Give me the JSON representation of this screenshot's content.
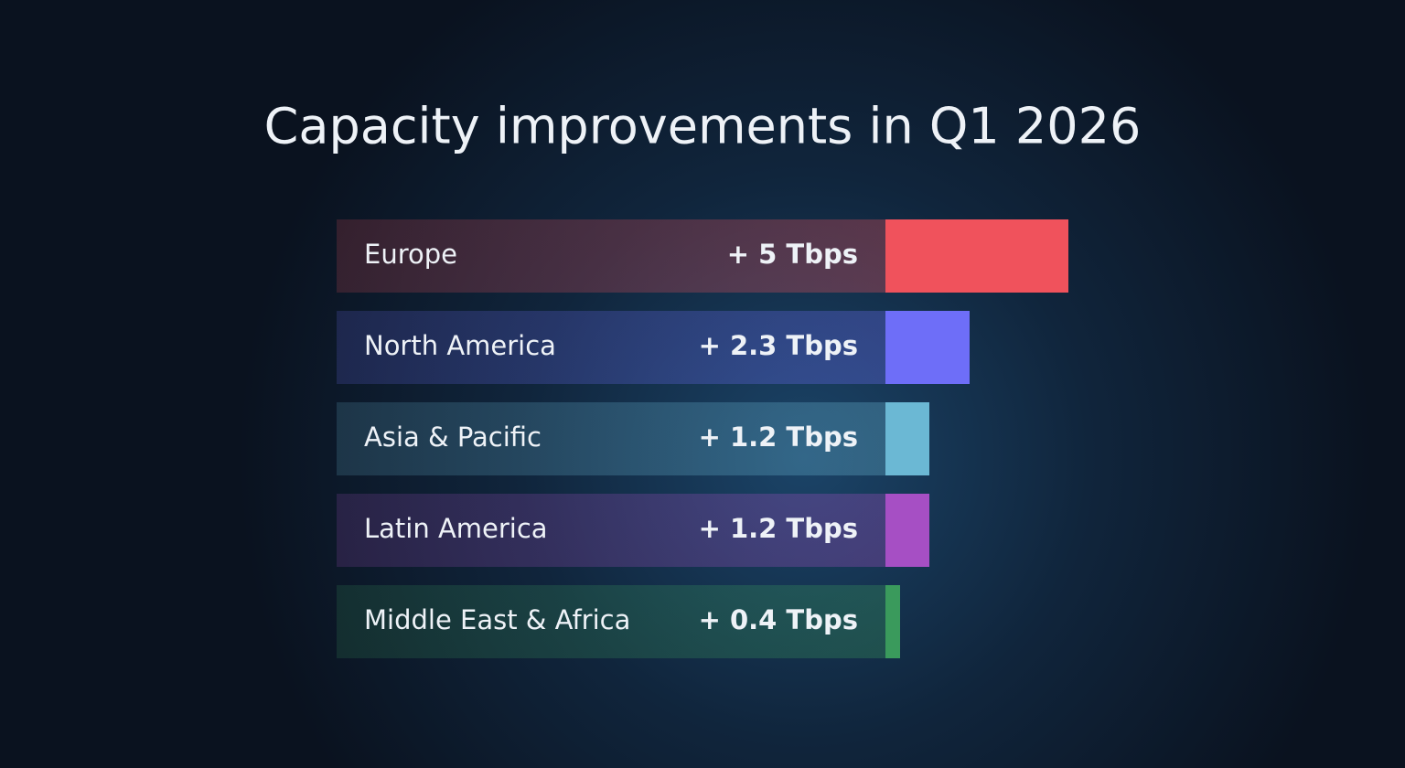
{
  "chart_data": {
    "type": "bar",
    "title": "Capacity improvements in Q1 2026",
    "categories": [
      "Europe",
      "North America",
      "Asia & Pacific",
      "Latin America",
      "Middle East & Africa"
    ],
    "values": [
      5,
      2.3,
      1.2,
      1.2,
      0.4
    ],
    "value_labels": [
      "+ 5 Tbps",
      "+ 2.3 Tbps",
      "+ 1.2 Tbps",
      "+ 1.2 Tbps",
      "+ 0.4 Tbps"
    ],
    "colors": [
      "#f0525c",
      "#6e6ef8",
      "#6bb8d4",
      "#a64fc4",
      "#3a9a5c"
    ]
  }
}
